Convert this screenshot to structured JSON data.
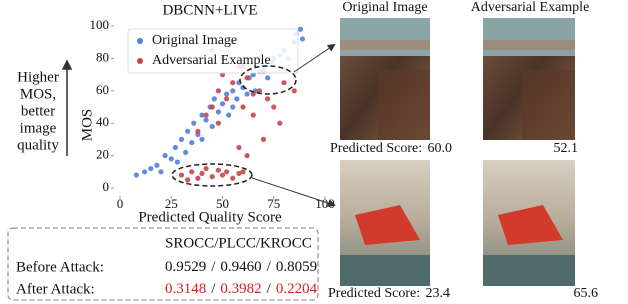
{
  "chart_data": {
    "type": "scatter",
    "title": "DBCNN+LIVE",
    "x_label": "Predicted Quality Score",
    "y_label": "MOS",
    "xlim": [
      0,
      100
    ],
    "xticks": [
      0,
      25,
      50,
      75,
      100
    ],
    "ylim": [
      0,
      100
    ],
    "yticks": [
      0,
      20,
      40,
      60,
      80,
      100
    ],
    "legend": "upper left",
    "series": [
      {
        "name": "Original Image",
        "color": "#4f7fdc",
        "x": [
          8,
          12,
          15,
          18,
          20,
          22,
          25,
          27,
          28,
          30,
          32,
          33,
          35,
          36,
          38,
          40,
          40,
          42,
          44,
          45,
          46,
          48,
          50,
          52,
          53,
          55,
          55,
          57,
          58,
          60,
          62,
          63,
          65,
          66,
          68,
          70,
          72,
          74,
          75,
          78,
          80,
          82,
          85,
          86,
          88,
          89
        ],
        "values": [
          8,
          10,
          12,
          14,
          10,
          20,
          18,
          25,
          16,
          30,
          22,
          35,
          28,
          40,
          33,
          45,
          30,
          42,
          50,
          38,
          55,
          47,
          52,
          58,
          45,
          60,
          50,
          55,
          65,
          62,
          58,
          68,
          70,
          60,
          72,
          75,
          68,
          78,
          80,
          82,
          85,
          80,
          90,
          95,
          98,
          92
        ]
      },
      {
        "name": "Adversarial Example",
        "color": "#c8454c",
        "x": [
          30,
          33,
          35,
          38,
          40,
          42,
          45,
          48,
          50,
          52,
          55,
          58,
          60,
          38,
          42,
          45,
          48,
          50,
          52,
          55,
          58,
          60,
          62,
          65,
          68,
          70,
          72,
          75,
          78,
          80,
          45,
          50,
          55,
          60,
          65,
          70,
          48,
          58,
          62,
          85
        ],
        "values": [
          8,
          5,
          10,
          6,
          9,
          12,
          7,
          11,
          8,
          10,
          6,
          9,
          10,
          35,
          45,
          50,
          60,
          70,
          55,
          65,
          75,
          50,
          68,
          45,
          60,
          72,
          55,
          50,
          40,
          65,
          85,
          80,
          90,
          75,
          58,
          30,
          40,
          25,
          20,
          60
        ]
      }
    ]
  },
  "left_note": {
    "lines": [
      "Higher",
      "MOS,",
      "better",
      "image",
      "quality"
    ]
  },
  "images": {
    "column_titles": [
      "Original Image",
      "Adversarial Example"
    ],
    "score_label": "Predicted Score:",
    "scores": [
      [
        "60.0",
        "52.1"
      ],
      [
        "23.4",
        "65.6"
      ]
    ]
  },
  "table": {
    "header": "SROCC/PLCC/KROCC",
    "separator": "/",
    "rows": [
      {
        "label": "Before Attack:",
        "values": [
          "0.9529",
          "0.9460",
          "0.8059"
        ]
      },
      {
        "label": "After Attack:",
        "values": [
          "0.3148",
          "0.3982",
          "0.2204"
        ]
      }
    ]
  }
}
